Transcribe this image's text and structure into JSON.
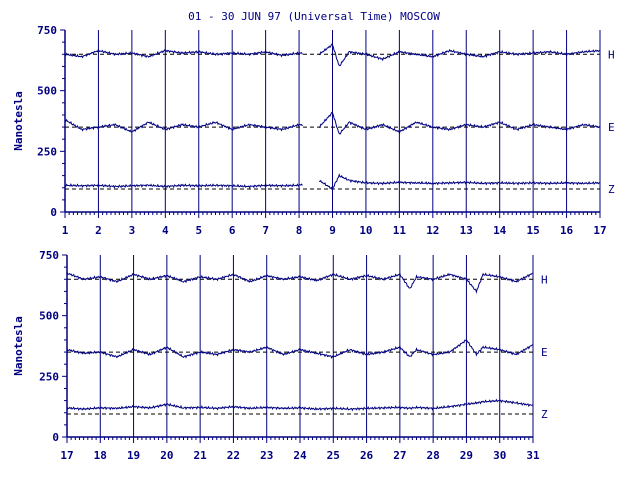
{
  "chart_data": [
    {
      "type": "line",
      "title": "01 - 30 JUN 97 (Universal Time) MOSCOW",
      "ylabel": "Nanotesla",
      "xlim": [
        1,
        17
      ],
      "ylim": [
        0,
        750
      ],
      "x_ticks": [
        1,
        2,
        3,
        4,
        5,
        6,
        7,
        8,
        9,
        10,
        11,
        12,
        13,
        14,
        15,
        16,
        17
      ],
      "y_ticks": [
        0,
        250,
        500,
        750
      ],
      "gap": [
        8.1,
        8.6
      ],
      "series": [
        {
          "name": "H",
          "baseline": 650,
          "x": [
            1,
            1.5,
            2,
            2.5,
            3,
            3.5,
            4,
            4.5,
            5,
            5.5,
            6,
            6.5,
            7,
            7.5,
            8,
            8.6,
            9,
            9.2,
            9.5,
            10,
            10.5,
            11,
            11.5,
            12,
            12.5,
            13,
            13.5,
            14,
            14.5,
            15,
            15.5,
            16,
            16.5,
            17
          ],
          "values": [
            650,
            640,
            665,
            650,
            655,
            640,
            665,
            655,
            660,
            650,
            655,
            650,
            660,
            645,
            655,
            650,
            690,
            600,
            660,
            650,
            630,
            660,
            650,
            640,
            665,
            650,
            640,
            660,
            650,
            655,
            660,
            650,
            660,
            665
          ]
        },
        {
          "name": "E",
          "baseline": 350,
          "x": [
            1,
            1.5,
            2,
            2.5,
            3,
            3.5,
            4,
            4.5,
            5,
            5.5,
            6,
            6.5,
            7,
            7.5,
            8,
            8.6,
            9,
            9.2,
            9.5,
            10,
            10.5,
            11,
            11.5,
            12,
            12.5,
            13,
            13.5,
            14,
            14.5,
            15,
            15.5,
            16,
            16.5,
            17
          ],
          "values": [
            380,
            340,
            350,
            360,
            330,
            370,
            340,
            360,
            350,
            370,
            340,
            360,
            350,
            340,
            360,
            350,
            410,
            320,
            370,
            340,
            360,
            330,
            370,
            350,
            340,
            360,
            350,
            370,
            340,
            360,
            350,
            340,
            360,
            350
          ]
        },
        {
          "name": "Z",
          "baseline": 95,
          "x": [
            1,
            1.5,
            2,
            2.5,
            3,
            3.5,
            4,
            4.5,
            5,
            5.5,
            6,
            6.5,
            7,
            7.5,
            8,
            8.6,
            9,
            9.2,
            9.5,
            10,
            10.5,
            11,
            11.5,
            12,
            12.5,
            13,
            13.5,
            14,
            14.5,
            15,
            15.5,
            16,
            16.5,
            17
          ],
          "values": [
            110,
            108,
            110,
            105,
            108,
            110,
            105,
            110,
            108,
            110,
            108,
            105,
            110,
            108,
            110,
            130,
            95,
            150,
            130,
            120,
            118,
            122,
            120,
            118,
            120,
            122,
            118,
            120,
            118,
            120,
            118,
            120,
            118,
            120
          ]
        }
      ]
    },
    {
      "type": "line",
      "title": "",
      "ylabel": "Nanotesla",
      "xlim": [
        17,
        31
      ],
      "ylim": [
        0,
        750
      ],
      "x_ticks": [
        17,
        18,
        19,
        20,
        21,
        22,
        23,
        24,
        25,
        26,
        27,
        28,
        29,
        30,
        31
      ],
      "y_ticks": [
        0,
        250,
        500,
        750
      ],
      "gap": null,
      "series": [
        {
          "name": "H",
          "baseline": 650,
          "x": [
            17,
            17.5,
            18,
            18.5,
            19,
            19.5,
            20,
            20.5,
            21,
            21.5,
            22,
            22.5,
            23,
            23.5,
            24,
            24.5,
            25,
            25.5,
            26,
            26.5,
            27,
            27.3,
            27.5,
            28,
            28.5,
            29,
            29.3,
            29.5,
            30,
            30.5,
            31
          ],
          "values": [
            675,
            650,
            660,
            640,
            670,
            650,
            665,
            640,
            660,
            650,
            670,
            640,
            665,
            650,
            660,
            645,
            670,
            650,
            665,
            650,
            670,
            610,
            660,
            650,
            670,
            650,
            600,
            670,
            660,
            640,
            675
          ]
        },
        {
          "name": "E",
          "baseline": 350,
          "x": [
            17,
            17.5,
            18,
            18.5,
            19,
            19.5,
            20,
            20.5,
            21,
            21.5,
            22,
            22.5,
            23,
            23.5,
            24,
            24.5,
            25,
            25.5,
            26,
            26.5,
            27,
            27.3,
            27.5,
            28,
            28.5,
            29,
            29.3,
            29.5,
            30,
            30.5,
            31
          ],
          "values": [
            360,
            345,
            350,
            330,
            360,
            340,
            370,
            330,
            350,
            340,
            360,
            350,
            370,
            340,
            360,
            345,
            330,
            360,
            340,
            350,
            370,
            330,
            360,
            340,
            350,
            400,
            340,
            370,
            360,
            340,
            380
          ]
        },
        {
          "name": "Z",
          "baseline": 95,
          "x": [
            17,
            17.5,
            18,
            18.5,
            19,
            19.5,
            20,
            20.5,
            21,
            21.5,
            22,
            22.5,
            23,
            23.5,
            24,
            24.5,
            25,
            25.5,
            26,
            26.5,
            27,
            27.3,
            27.5,
            28,
            28.5,
            29,
            29.3,
            29.5,
            30,
            30.5,
            31
          ],
          "values": [
            120,
            115,
            120,
            118,
            125,
            120,
            135,
            120,
            122,
            118,
            125,
            118,
            122,
            118,
            120,
            115,
            118,
            115,
            118,
            120,
            122,
            118,
            122,
            118,
            125,
            135,
            140,
            145,
            150,
            140,
            130
          ]
        }
      ]
    }
  ]
}
